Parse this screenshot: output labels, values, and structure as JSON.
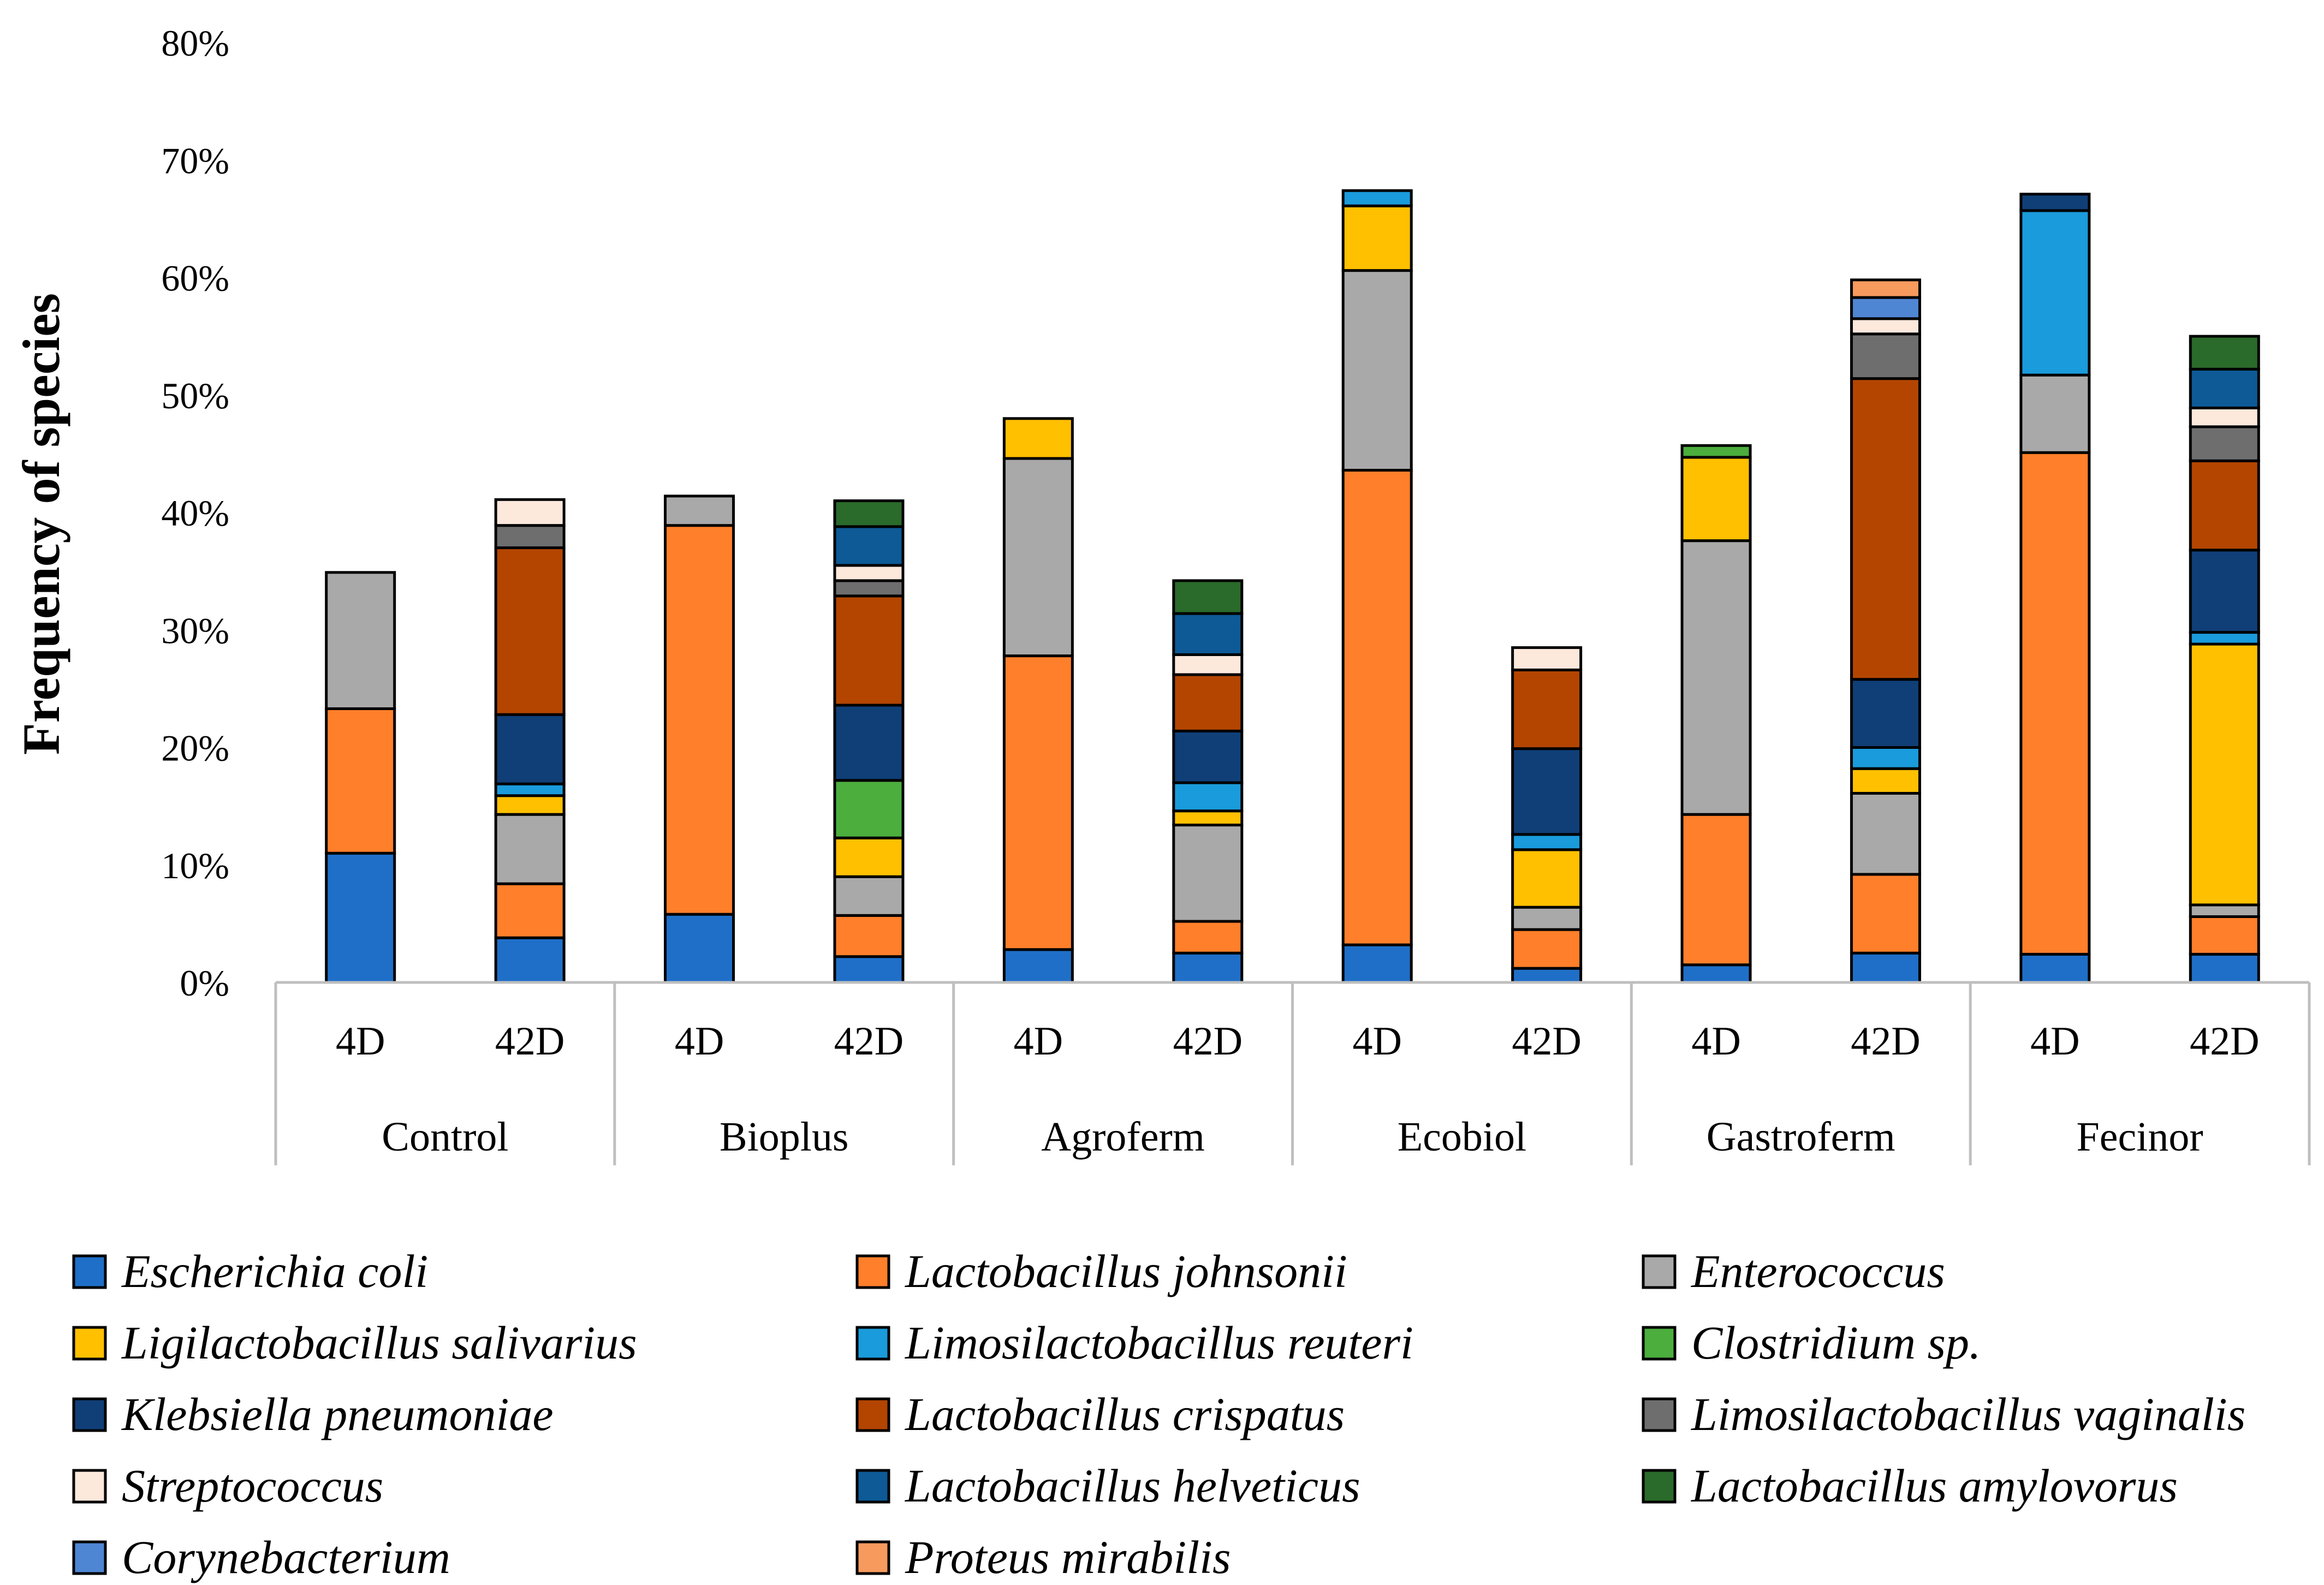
{
  "chart_data": {
    "type": "bar",
    "stacked": true,
    "title": "",
    "xlabel": "",
    "ylabel": "Frequency of species",
    "ylim": [
      0,
      80
    ],
    "yticks": [
      "0%",
      "10%",
      "20%",
      "30%",
      "40%",
      "50%",
      "60%",
      "70%",
      "80%"
    ],
    "grid": false,
    "legend_position": "bottom",
    "groups": [
      "Control",
      "Bioplus",
      "Agroferm",
      "Ecobiol",
      "Gastroferm",
      "Fecinor"
    ],
    "categories": [
      "4D",
      "42D",
      "4D",
      "42D",
      "4D",
      "42D",
      "4D",
      "42D",
      "4D",
      "42D",
      "4D",
      "42D"
    ],
    "series": [
      {
        "name": "Escherichia coli",
        "color": "#1F6FC8",
        "values": [
          11.0,
          3.8,
          5.8,
          2.2,
          2.8,
          2.5,
          3.2,
          1.2,
          1.5,
          2.5,
          2.4,
          2.4
        ]
      },
      {
        "name": "Lactobacillus johnsonii",
        "color": "#FF7F2A",
        "values": [
          12.3,
          4.6,
          33.1,
          3.5,
          25.0,
          2.7,
          40.4,
          3.3,
          12.8,
          6.7,
          42.7,
          3.2
        ]
      },
      {
        "name": "Enterococcus",
        "color": "#A9A9A9",
        "values": [
          11.6,
          5.9,
          2.5,
          3.3,
          16.8,
          8.2,
          17.0,
          1.9,
          23.3,
          6.9,
          6.6,
          1.0
        ]
      },
      {
        "name": "Ligilactobacillus salivarius",
        "color": "#FFC000",
        "values": [
          0,
          1.6,
          0,
          3.3,
          3.4,
          1.2,
          5.5,
          4.9,
          7.1,
          2.1,
          0,
          22.2
        ]
      },
      {
        "name": "Limosilactobacillus reuteri",
        "color": "#1A9BDC",
        "values": [
          0,
          1.0,
          0,
          0,
          0,
          2.4,
          1.3,
          1.3,
          0,
          1.8,
          14.0,
          1.0
        ]
      },
      {
        "name": "Clostridium sp.",
        "color": "#4BAE3D",
        "values": [
          0,
          0,
          0,
          4.9,
          0,
          0,
          0,
          0,
          1.0,
          0,
          0,
          0
        ]
      },
      {
        "name": "Klebsiella pneumoniae",
        "color": "#103F78",
        "values": [
          0,
          5.9,
          0,
          6.4,
          0,
          4.4,
          0,
          7.3,
          0,
          5.8,
          1.4,
          7.0
        ]
      },
      {
        "name": "Lactobacillus crispatus",
        "color": "#B34500",
        "values": [
          0,
          14.2,
          0,
          9.3,
          0,
          4.8,
          0,
          6.7,
          0,
          25.6,
          0,
          7.6
        ]
      },
      {
        "name": "Limosilactobacillus vaginalis",
        "color": "#6E6E6E",
        "values": [
          0,
          1.9,
          0,
          1.3,
          0,
          0,
          0,
          0,
          0,
          3.8,
          0,
          2.9
        ]
      },
      {
        "name": "Streptococcus",
        "color": "#FDE8DC",
        "values": [
          0,
          2.2,
          0,
          1.3,
          0,
          1.7,
          0,
          1.9,
          0,
          1.3,
          0,
          1.6
        ]
      },
      {
        "name": "Lactobacillus helveticus",
        "color": "#0D5A96",
        "values": [
          0,
          0,
          0,
          3.3,
          0,
          3.5,
          0,
          0,
          0,
          0,
          0,
          3.3
        ]
      },
      {
        "name": "Lactobacillus amylovorus",
        "color": "#2A6A2A",
        "values": [
          0,
          0,
          0,
          2.2,
          0,
          2.8,
          0,
          0,
          0,
          0,
          0,
          2.8
        ]
      },
      {
        "name": "Corynebacterium",
        "color": "#4F86D4",
        "values": [
          0,
          0,
          0,
          0,
          0,
          0,
          0,
          0,
          0,
          1.8,
          0,
          0
        ]
      },
      {
        "name": "Proteus mirabilis",
        "color": "#F79A5E",
        "values": [
          0,
          0,
          0,
          0,
          0,
          0,
          0,
          0,
          0,
          1.5,
          0,
          0
        ]
      }
    ]
  }
}
